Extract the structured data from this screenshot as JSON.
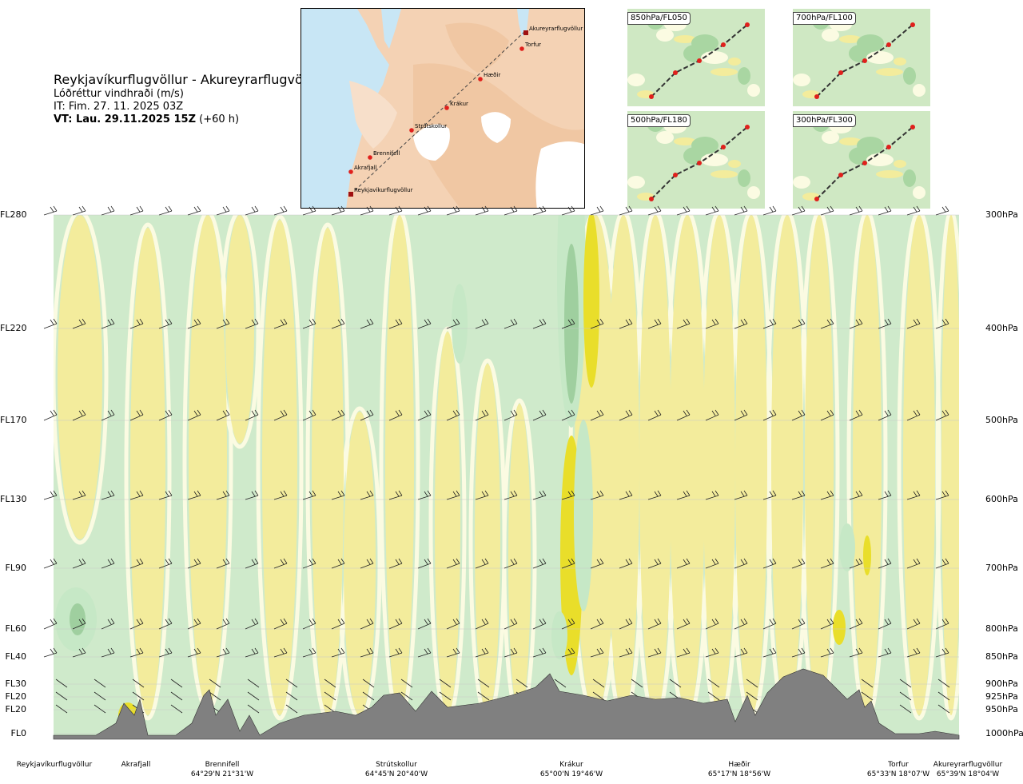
{
  "title": {
    "route": "Reykjavíkurflugvöllur - Akureyrarflugvöllur",
    "variable": "Lóðréttur vindhraði (m/s)",
    "issue_time": "IT: Fim. 27. 11. 2025 03Z",
    "valid_time_bold": "VT: Lau. 29.11.2025 15Z",
    "valid_time_offset": "(+60 h)"
  },
  "map": {
    "waypoints": [
      {
        "name": "Akureyrarflugvöllur",
        "kind": "airport"
      },
      {
        "name": "Torfur",
        "kind": "point"
      },
      {
        "name": "Hæðir",
        "kind": "point"
      },
      {
        "name": "Krákur",
        "kind": "point"
      },
      {
        "name": "Strútskollur",
        "kind": "point"
      },
      {
        "name": "Brennifell",
        "kind": "point"
      },
      {
        "name": "Akrafjall",
        "kind": "point"
      },
      {
        "name": "Reykjavíkurflugvöllur",
        "kind": "airport"
      }
    ],
    "colors": {
      "sea": "#c8e6f5",
      "land": "#f4d2b4",
      "high": "#fbeee0",
      "glacier": "#ffffff",
      "route": "#444444",
      "marker": "#e0201c"
    }
  },
  "mini_maps": [
    {
      "label": "850hPa/FL050"
    },
    {
      "label": "700hPa/FL100"
    },
    {
      "label": "500hPa/FL180"
    },
    {
      "label": "300hPa/FL300"
    }
  ],
  "chart_data": {
    "type": "heatmap",
    "title": "",
    "levels_left": [
      "FL280",
      "FL220",
      "FL170",
      "FL130",
      "FL90",
      "FL60",
      "FL40",
      "FL30",
      "FL20",
      "FL20",
      "FL0"
    ],
    "levels_right": [
      "300hPa",
      "400hPa",
      "500hPa",
      "600hPa",
      "700hPa",
      "800hPa",
      "850hPa",
      "900hPa",
      "925hPa",
      "950hPa",
      "1000hPa"
    ],
    "pressure_levels_hpa": [
      300,
      400,
      500,
      600,
      700,
      800,
      850,
      900,
      925,
      950,
      1000
    ],
    "stations": [
      {
        "name": "Reykjavíkurflugvöllur",
        "coord": ""
      },
      {
        "name": "Akrafjall",
        "coord": ""
      },
      {
        "name": "Brennifell",
        "coord": "64°29'N 21°31'W"
      },
      {
        "name": "Strútskollur",
        "coord": "64°45'N 20°40'W"
      },
      {
        "name": "Krákur",
        "coord": "65°00'N 19°46'W"
      },
      {
        "name": "Hæðir",
        "coord": "65°17'N 18°56'W"
      },
      {
        "name": "Torfur",
        "coord": "65°33'N 18°07'W"
      },
      {
        "name": "Akureyrarflugvöllur",
        "coord": "65°39'N 18°04'W"
      }
    ],
    "color_scale": {
      "strong_ascent": "#9fcf9f",
      "moderate_ascent": "#c6e8c6",
      "weak": "#fbfbe2",
      "moderate_descent": "#f3ec9c",
      "strong_descent": "#e9de2a",
      "terrain": "#808080"
    },
    "grid": true,
    "legend": "none"
  }
}
